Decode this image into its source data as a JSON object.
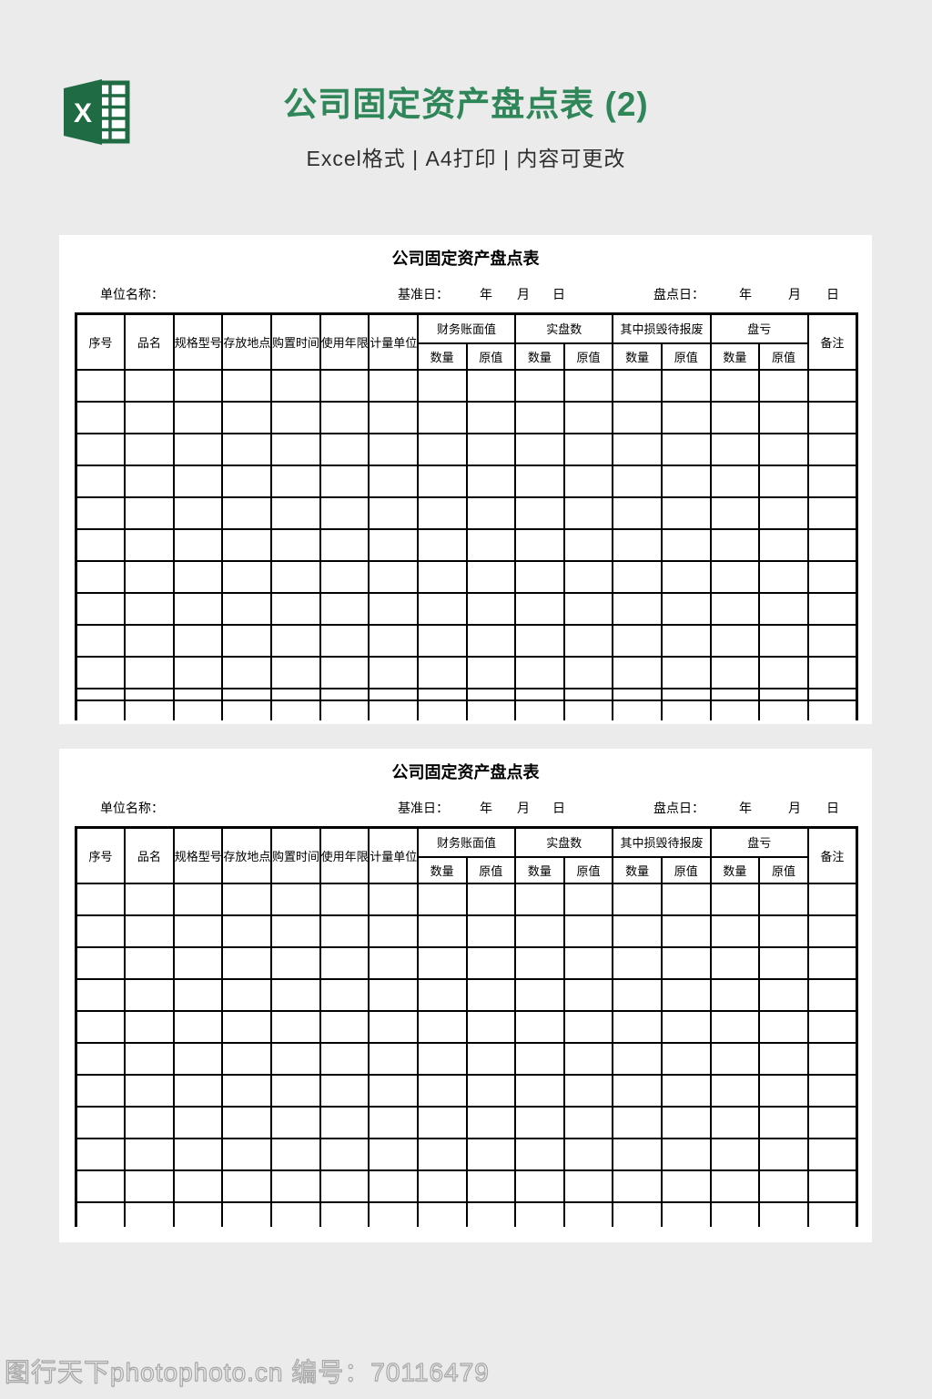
{
  "header": {
    "title": "公司固定资产盘点表 (2)",
    "subtitle": "Excel格式 | A4打印 | 内容可更改",
    "icon": "excel-icon",
    "title_color": "#2e8659"
  },
  "sheet": {
    "title": "公司固定资产盘点表",
    "unit_label": "单位名称：",
    "base_date_label": "基准日：",
    "inventory_date_label": "盘点日：",
    "year_label": "年",
    "month_label": "月",
    "day_label": "日",
    "columns_simple": [
      "序号",
      "品名",
      "规格型号",
      "存放地点",
      "购置时间",
      "使用年限",
      "计量单位"
    ],
    "columns_grouped": [
      {
        "label": "财务账面值",
        "children": [
          "数量",
          "原值"
        ]
      },
      {
        "label": "实盘数",
        "children": [
          "数量",
          "原值"
        ]
      },
      {
        "label": "其中损毁待报废",
        "children": [
          "数量",
          "原值"
        ]
      },
      {
        "label": "盘亏",
        "children": [
          "数量",
          "原值"
        ]
      }
    ],
    "column_last": "备注",
    "empty_rows": 12,
    "cell_values": []
  },
  "panels": [
    {
      "page": "preview-page-1"
    },
    {
      "page": "preview-page-2"
    }
  ],
  "footer": {
    "watermark": "图行天下photophoto.cn 编号：70116479"
  },
  "colors": {
    "page_bg": "#ebebeb",
    "panel_bg": "#ffffff",
    "icon_green": "#1f6b43",
    "title_green": "#2e8659",
    "table_border": "#000000",
    "watermark_gray": "#a8a8a8"
  }
}
